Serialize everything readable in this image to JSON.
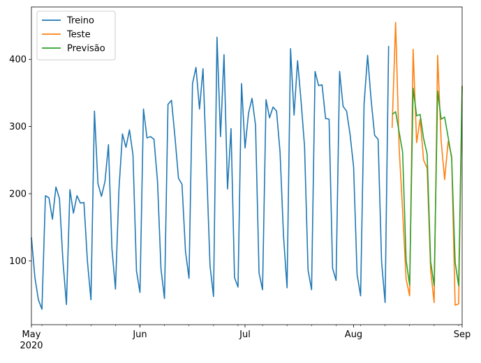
{
  "chart_data": {
    "type": "line",
    "title": "",
    "xlabel": "",
    "ylabel": "",
    "x_range": [
      "2020-05-01",
      "2020-09-01"
    ],
    "ylim": [
      5,
      478
    ],
    "grid": false,
    "legend": {
      "placement": "top-left",
      "entries": [
        {
          "label": "Treino",
          "color": "#1f77b4"
        },
        {
          "label": "Teste",
          "color": "#ff7f0e"
        },
        {
          "label": "Previsão",
          "color": "#2ca02c"
        }
      ]
    },
    "x_ticks": [
      {
        "date": "2020-05-01",
        "label": "May",
        "sublabel": "2020"
      },
      {
        "date": "2020-06-01",
        "label": "Jun",
        "sublabel": ""
      },
      {
        "date": "2020-07-01",
        "label": "Jul",
        "sublabel": ""
      },
      {
        "date": "2020-08-01",
        "label": "Aug",
        "sublabel": ""
      },
      {
        "date": "2020-09-01",
        "label": "Sep",
        "sublabel": ""
      }
    ],
    "y_ticks": [
      100,
      200,
      300,
      400
    ],
    "series": [
      {
        "name": "Treino",
        "color": "#1f77b4",
        "start_date": "2020-05-01",
        "values": [
          135,
          75,
          42,
          28,
          197,
          194,
          162,
          210,
          193,
          100,
          35,
          206,
          171,
          197,
          186,
          187,
          99,
          42,
          323,
          215,
          196,
          218,
          273,
          118,
          58,
          207,
          289,
          269,
          295,
          258,
          85,
          53,
          326,
          283,
          285,
          281,
          219,
          88,
          44,
          333,
          339,
          284,
          223,
          214,
          114,
          74,
          364,
          388,
          326,
          386,
          243,
          93,
          47,
          433,
          285,
          407,
          207,
          297,
          75,
          61,
          364,
          268,
          320,
          342,
          302,
          82,
          57,
          340,
          313,
          329,
          323,
          262,
          136,
          60,
          416,
          317,
          398,
          338,
          270,
          86,
          57,
          382,
          361,
          362,
          312,
          311,
          89,
          71,
          382,
          330,
          323,
          288,
          240,
          80,
          48,
          334,
          406,
          340,
          287,
          281,
          98,
          38,
          420
        ]
      },
      {
        "name": "Teste",
        "color": "#ff7f0e",
        "start_date": "2020-08-12",
        "values": [
          298,
          455,
          269,
          175,
          73,
          48,
          415,
          276,
          311,
          250,
          238,
          86,
          38,
          406,
          279,
          221,
          278,
          256,
          34,
          36,
          361
        ]
      },
      {
        "name": "Previsão",
        "color": "#2ca02c",
        "start_date": "2020-08-12",
        "values": [
          318,
          322,
          292,
          262,
          101,
          64,
          357,
          316,
          318,
          282,
          259,
          99,
          63,
          353,
          311,
          314,
          284,
          253,
          98,
          63,
          360
        ]
      }
    ]
  }
}
